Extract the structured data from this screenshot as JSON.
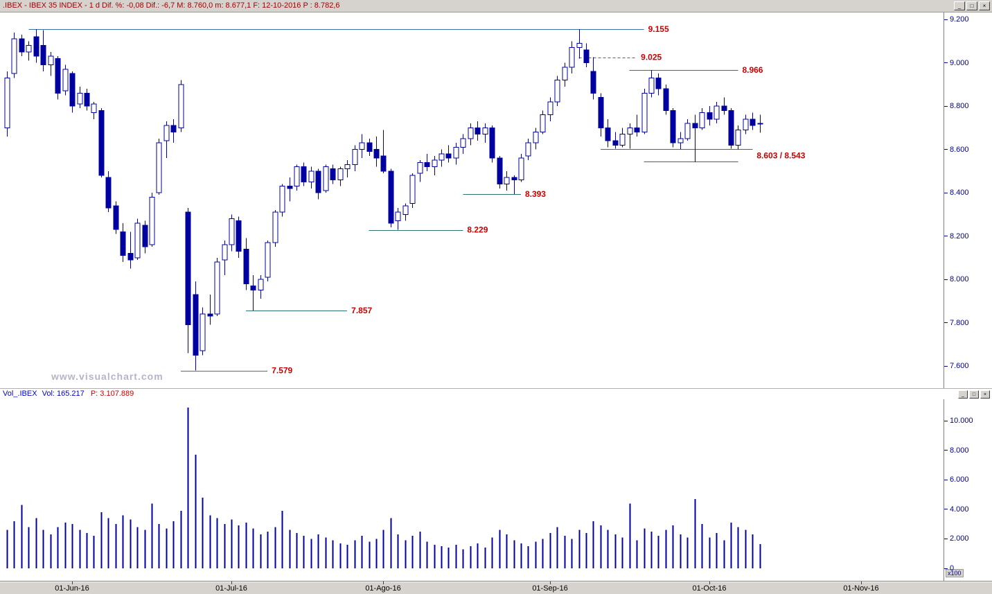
{
  "header": {
    "title": ".IBEX - IBEX 35 INDEX - 1 d  Dif. %: -0,08  Dif.: -6,7  M: 8.760,0  m: 8.677,1  F: 12-10-2016  P : 8.782,6"
  },
  "icons": {
    "minimize": "_",
    "restore": "□",
    "close": "×"
  },
  "watermark": "www.visualchart.com",
  "volume_header": {
    "instrument": "Vol_.IBEX",
    "volume": "Vol: 165.217",
    "position": "P: 3.107.889"
  },
  "price_axis": {
    "ticks": [
      {
        "label": "9.200",
        "value": 9.2
      },
      {
        "label": "9.000",
        "value": 9.0
      },
      {
        "label": "8.800",
        "value": 8.8
      },
      {
        "label": "8.600",
        "value": 8.6
      },
      {
        "label": "8.400",
        "value": 8.4
      },
      {
        "label": "8.200",
        "value": 8.2
      },
      {
        "label": "8.000",
        "value": 8.0
      },
      {
        "label": "7.800",
        "value": 7.8
      },
      {
        "label": "7.600",
        "value": 7.6
      }
    ]
  },
  "volume_axis": {
    "multiplier": "x100",
    "ticks": [
      {
        "label": "10.000",
        "value": 10000
      },
      {
        "label": "8.000",
        "value": 8000
      },
      {
        "label": "6.000",
        "value": 6000
      },
      {
        "label": "4.000",
        "value": 4000
      },
      {
        "label": "2.000",
        "value": 2000
      },
      {
        "label": "0",
        "value": 0
      }
    ]
  },
  "date_axis": {
    "ticks": [
      {
        "label": "01-Jun-16",
        "index": 9
      },
      {
        "label": "01-Jul-16",
        "index": 31
      },
      {
        "label": "01-Ago-16",
        "index": 52
      },
      {
        "label": "01-Sep-16",
        "index": 75
      },
      {
        "label": "01-Oct-16",
        "index": 97
      },
      {
        "label": "01-Nov-16",
        "index": 118
      }
    ]
  },
  "chart_data": {
    "type": "candlestick",
    "title": "IBEX 35 INDEX - 1 d",
    "price_ylim": [
      7.498,
      9.232
    ],
    "vol_ylim": [
      0,
      11500
    ],
    "colors": {
      "candle": "#0000a0",
      "volume": "#0000a0",
      "level_label": "#cc0000",
      "axis_text": "#00008b",
      "title_text": "#a00000"
    },
    "levels": [
      {
        "value": 9.155,
        "label": "9.155",
        "from": 3,
        "to": 88,
        "dashed": false,
        "color": "#3a6ea5"
      },
      {
        "value": 9.025,
        "label": "9.025",
        "from": 79,
        "to": 87,
        "dashed": true,
        "color": "#3a5fcd"
      },
      {
        "value": 8.966,
        "label": "8.966",
        "from": 86,
        "to": 101,
        "dashed": false,
        "color": "#2e6f6f"
      },
      {
        "value": 8.603,
        "label": "8.603 / 8.543",
        "label_value": 8.572,
        "from": 82,
        "to": 103,
        "dashed": false,
        "color": "#2e6f6f"
      },
      {
        "value": 8.543,
        "label": "",
        "from": 88,
        "to": 101,
        "dashed": false,
        "color": "#2e6f6f"
      },
      {
        "value": 8.393,
        "label": "8.393",
        "from": 63,
        "to": 71,
        "dashed": false,
        "color": "#2e6f6f"
      },
      {
        "value": 8.229,
        "label": "8.229",
        "from": 50,
        "to": 63,
        "dashed": false,
        "color": "#2e6f6f"
      },
      {
        "value": 7.857,
        "label": "7.857",
        "from": 33,
        "to": 47,
        "dashed": false,
        "color": "#2e6f6f"
      },
      {
        "value": 7.579,
        "label": "7.579",
        "from": 24,
        "to": 36,
        "dashed": false,
        "color": "#3a6ea5"
      }
    ],
    "candles": [
      [
        8.7,
        8.96,
        8.66,
        8.93
      ],
      [
        8.95,
        9.14,
        8.93,
        9.11
      ],
      [
        9.11,
        9.13,
        9.03,
        9.05
      ],
      [
        9.05,
        9.1,
        9.01,
        9.08
      ],
      [
        9.12,
        9.155,
        9.0,
        9.03
      ],
      [
        9.08,
        9.15,
        8.96,
        8.99
      ],
      [
        8.99,
        9.05,
        8.94,
        9.03
      ],
      [
        9.02,
        9.03,
        8.83,
        8.86
      ],
      [
        8.87,
        8.99,
        8.85,
        8.97
      ],
      [
        8.95,
        8.96,
        8.77,
        8.8
      ],
      [
        8.81,
        8.89,
        8.79,
        8.86
      ],
      [
        8.86,
        8.88,
        8.78,
        8.8
      ],
      [
        8.77,
        8.82,
        8.74,
        8.81
      ],
      [
        8.78,
        8.79,
        8.47,
        8.48
      ],
      [
        8.47,
        8.5,
        8.31,
        8.33
      ],
      [
        8.34,
        8.36,
        8.21,
        8.23
      ],
      [
        8.22,
        8.26,
        8.08,
        8.11
      ],
      [
        8.12,
        8.22,
        8.05,
        8.09
      ],
      [
        8.1,
        8.28,
        8.09,
        8.26
      ],
      [
        8.25,
        8.27,
        8.12,
        8.15
      ],
      [
        8.16,
        8.4,
        8.15,
        8.38
      ],
      [
        8.4,
        8.65,
        8.39,
        8.63
      ],
      [
        8.64,
        8.73,
        8.56,
        8.71
      ],
      [
        8.71,
        8.74,
        8.63,
        8.68
      ],
      [
        8.7,
        8.92,
        8.68,
        8.9
      ],
      [
        8.31,
        8.33,
        7.66,
        7.79
      ],
      [
        7.93,
        7.99,
        7.579,
        7.65
      ],
      [
        7.67,
        7.87,
        7.65,
        7.84
      ],
      [
        7.84,
        7.93,
        7.79,
        7.83
      ],
      [
        7.84,
        8.1,
        7.83,
        8.08
      ],
      [
        8.09,
        8.18,
        8.02,
        8.16
      ],
      [
        8.16,
        8.3,
        8.13,
        8.28
      ],
      [
        8.27,
        8.29,
        8.1,
        8.13
      ],
      [
        8.14,
        8.19,
        7.95,
        7.98
      ],
      [
        7.97,
        8.02,
        7.857,
        7.95
      ],
      [
        7.95,
        8.02,
        7.91,
        8.0
      ],
      [
        8.01,
        8.18,
        7.99,
        8.17
      ],
      [
        8.17,
        8.32,
        8.15,
        8.31
      ],
      [
        8.31,
        8.44,
        8.29,
        8.43
      ],
      [
        8.43,
        8.47,
        8.36,
        8.42
      ],
      [
        8.43,
        8.53,
        8.41,
        8.52
      ],
      [
        8.52,
        8.54,
        8.43,
        8.45
      ],
      [
        8.45,
        8.52,
        8.42,
        8.5
      ],
      [
        8.5,
        8.51,
        8.37,
        8.4
      ],
      [
        8.41,
        8.53,
        8.4,
        8.52
      ],
      [
        8.51,
        8.53,
        8.44,
        8.46
      ],
      [
        8.46,
        8.52,
        8.43,
        8.51
      ],
      [
        8.51,
        8.55,
        8.47,
        8.53
      ],
      [
        8.53,
        8.62,
        8.5,
        8.6
      ],
      [
        8.6,
        8.67,
        8.56,
        8.63
      ],
      [
        8.63,
        8.65,
        8.57,
        8.59
      ],
      [
        8.6,
        8.66,
        8.52,
        8.56
      ],
      [
        8.57,
        8.69,
        8.49,
        8.5
      ],
      [
        8.5,
        8.51,
        8.24,
        8.26
      ],
      [
        8.27,
        8.33,
        8.229,
        8.31
      ],
      [
        8.3,
        8.35,
        8.27,
        8.34
      ],
      [
        8.35,
        8.49,
        8.33,
        8.48
      ],
      [
        8.49,
        8.55,
        8.45,
        8.54
      ],
      [
        8.54,
        8.58,
        8.5,
        8.52
      ],
      [
        8.52,
        8.57,
        8.48,
        8.55
      ],
      [
        8.55,
        8.6,
        8.52,
        8.58
      ],
      [
        8.58,
        8.62,
        8.54,
        8.56
      ],
      [
        8.56,
        8.63,
        8.53,
        8.61
      ],
      [
        8.61,
        8.67,
        8.58,
        8.65
      ],
      [
        8.65,
        8.72,
        8.62,
        8.7
      ],
      [
        8.7,
        8.73,
        8.64,
        8.67
      ],
      [
        8.67,
        8.72,
        8.63,
        8.7
      ],
      [
        8.7,
        8.71,
        8.54,
        8.56
      ],
      [
        8.56,
        8.57,
        8.42,
        8.44
      ],
      [
        8.44,
        8.5,
        8.41,
        8.47
      ],
      [
        8.47,
        8.48,
        8.393,
        8.46
      ],
      [
        8.46,
        8.58,
        8.45,
        8.56
      ],
      [
        8.57,
        8.65,
        8.55,
        8.63
      ],
      [
        8.63,
        8.7,
        8.6,
        8.68
      ],
      [
        8.68,
        8.78,
        8.67,
        8.76
      ],
      [
        8.76,
        8.84,
        8.73,
        8.82
      ],
      [
        8.82,
        8.94,
        8.8,
        8.92
      ],
      [
        8.92,
        9.0,
        8.89,
        8.98
      ],
      [
        8.98,
        9.1,
        8.95,
        9.07
      ],
      [
        9.07,
        9.155,
        9.02,
        9.09
      ],
      [
        9.06,
        9.09,
        8.98,
        9.0
      ],
      [
        8.96,
        9.025,
        8.83,
        8.86
      ],
      [
        8.84,
        8.86,
        8.66,
        8.7
      ],
      [
        8.7,
        8.74,
        8.61,
        8.64
      ],
      [
        8.64,
        8.68,
        8.603,
        8.62
      ],
      [
        8.62,
        8.7,
        8.61,
        8.67
      ],
      [
        8.67,
        8.72,
        8.603,
        8.7
      ],
      [
        8.7,
        8.76,
        8.66,
        8.68
      ],
      [
        8.68,
        8.88,
        8.67,
        8.86
      ],
      [
        8.86,
        8.966,
        8.84,
        8.93
      ],
      [
        8.93,
        8.95,
        8.85,
        8.88
      ],
      [
        8.88,
        8.9,
        8.76,
        8.78
      ],
      [
        8.78,
        8.79,
        8.61,
        8.63
      ],
      [
        8.63,
        8.68,
        8.6,
        8.65
      ],
      [
        8.65,
        8.74,
        8.64,
        8.72
      ],
      [
        8.72,
        8.76,
        8.543,
        8.7
      ],
      [
        8.7,
        8.79,
        8.69,
        8.77
      ],
      [
        8.77,
        8.8,
        8.71,
        8.74
      ],
      [
        8.74,
        8.82,
        8.72,
        8.8
      ],
      [
        8.8,
        8.84,
        8.76,
        8.78
      ],
      [
        8.78,
        8.79,
        8.603,
        8.62
      ],
      [
        8.62,
        8.71,
        8.6,
        8.69
      ],
      [
        8.69,
        8.76,
        8.67,
        8.74
      ],
      [
        8.74,
        8.77,
        8.69,
        8.71
      ],
      [
        8.72,
        8.76,
        8.677,
        8.72
      ]
    ],
    "volumes": [
      2600,
      3200,
      4300,
      2800,
      3400,
      2600,
      2300,
      2800,
      3100,
      3000,
      2600,
      2400,
      2200,
      3800,
      3400,
      3000,
      3600,
      3300,
      2800,
      2600,
      4400,
      3000,
      2700,
      3200,
      3900,
      10900,
      7700,
      4800,
      3600,
      3400,
      3000,
      3300,
      2900,
      3100,
      2700,
      2300,
      2500,
      2800,
      3900,
      2600,
      2400,
      2200,
      2000,
      2300,
      2100,
      1900,
      1700,
      1600,
      1900,
      2200,
      1800,
      2000,
      2600,
      3400,
      2300,
      1900,
      2200,
      2500,
      1800,
      1600,
      1500,
      1400,
      1600,
      1300,
      1500,
      1700,
      1400,
      2100,
      2600,
      2300,
      1900,
      1700,
      1500,
      1800,
      2000,
      2400,
      2800,
      2200,
      2000,
      2600,
      2400,
      3200,
      2900,
      2600,
      2300,
      2100,
      4400,
      1900,
      2700,
      2500,
      2200,
      2600,
      2900,
      2300,
      2100,
      4700,
      3000,
      2100,
      2400,
      1900,
      3100,
      2800,
      2600,
      2300,
      1652
    ]
  }
}
